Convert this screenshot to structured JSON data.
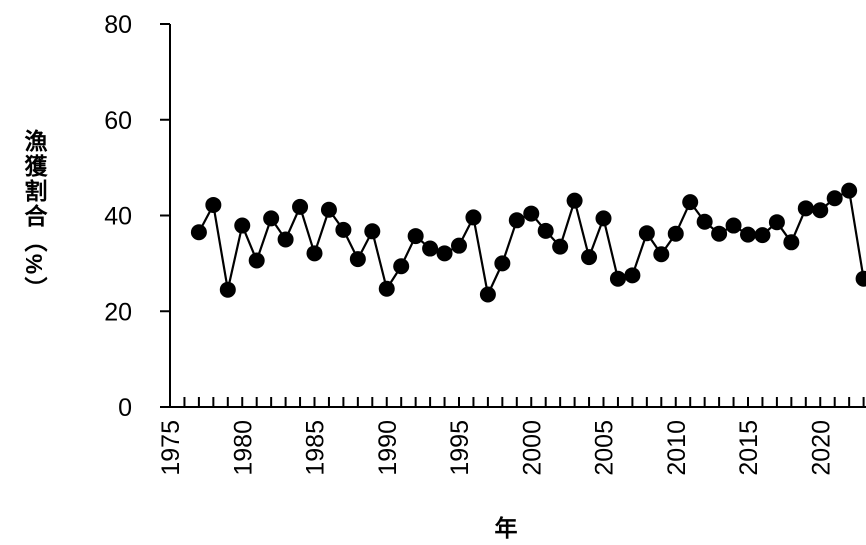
{
  "chart_data": {
    "type": "line",
    "title": "",
    "xlabel": "年",
    "ylabel": "漁獲割合（%）",
    "xlim": [
      1975,
      2023
    ],
    "ylim": [
      0,
      80
    ],
    "x_ticks": [
      1975,
      1980,
      1985,
      1990,
      1995,
      2000,
      2005,
      2010,
      2015,
      2020
    ],
    "y_ticks": [
      0,
      20,
      40,
      60,
      80
    ],
    "grid": false,
    "legend": "none",
    "colors": {
      "line": "#000000",
      "marker": "#000000"
    },
    "series": [
      {
        "x": [
          1977,
          1978,
          1979,
          1980,
          1981,
          1982,
          1983,
          1984,
          1985,
          1986,
          1987,
          1988,
          1989,
          1990,
          1991,
          1992,
          1993,
          1994,
          1995,
          1996,
          1997,
          1998,
          1999,
          2000,
          2001,
          2002,
          2003,
          2004,
          2005,
          2006,
          2007,
          2008,
          2009,
          2010,
          2011,
          2012,
          2013,
          2014,
          2015,
          2016,
          2017,
          2018,
          2019,
          2020,
          2021,
          2022,
          2023
        ],
        "values": [
          36.5,
          42.2,
          24.5,
          37.9,
          30.6,
          39.4,
          35.0,
          41.8,
          32.1,
          41.2,
          37.0,
          30.9,
          36.7,
          24.7,
          29.4,
          35.7,
          33.1,
          32.1,
          33.7,
          39.6,
          23.5,
          30.0,
          39.0,
          40.4,
          36.8,
          33.5,
          43.1,
          31.3,
          39.4,
          26.8,
          27.5,
          36.3,
          31.9,
          36.2,
          42.8,
          38.7,
          36.2,
          37.9,
          36.0,
          35.9,
          38.6,
          34.4,
          41.5,
          41.1,
          43.6,
          45.2,
          26.8
        ]
      }
    ]
  }
}
